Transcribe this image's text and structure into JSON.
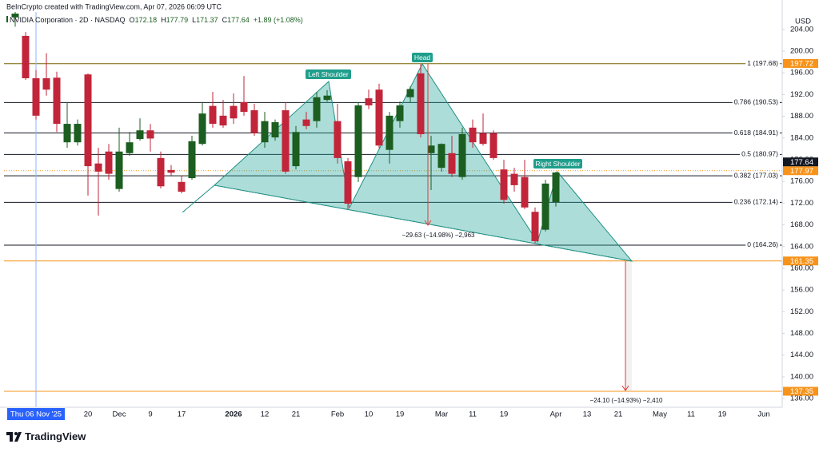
{
  "header": {
    "credit": "BeInCrypto created with TradingView.com, Apr 07, 2026 06:09 UTC"
  },
  "footer": {
    "logo": "TradingView"
  },
  "chart_data": {
    "type": "candlestick",
    "currency": "USD",
    "ohlc_prefixes": [
      "O",
      "H",
      "L",
      "C"
    ],
    "change_label": "+1.89 (+1.08%)",
    "crosshair": 2,
    "categories": [
      null,
      null,
      "Thu 06 Nov '25",
      null,
      null,
      null,
      null,
      "20",
      null,
      null,
      "Dec",
      null,
      null,
      "9",
      null,
      null,
      "17",
      null,
      null,
      null,
      null,
      "2026",
      null,
      null,
      "12",
      null,
      null,
      "21",
      null,
      null,
      null,
      "Feb",
      null,
      null,
      "10",
      null,
      null,
      "19",
      null,
      null,
      null,
      "Mar",
      null,
      null,
      "11",
      null,
      null,
      "19",
      null,
      null,
      null,
      null,
      "Apr",
      null,
      null,
      "13",
      null,
      null,
      "21",
      null,
      null,
      null,
      "May",
      null,
      null,
      "11",
      null,
      null,
      "19",
      null,
      null,
      null,
      "Jun"
    ],
    "series": [
      {
        "name": "NVIDIA Corporation · 2D · NASDAQ",
        "up_color": "#1b5e20",
        "down_color": "#c2253a",
        "open": [
          206.2,
          202.8,
          195.0,
          195.0,
          195.1,
          183.2,
          183.2,
          195.7,
          179.3,
          181.5,
          174.6,
          181.2,
          183.8,
          185.4,
          180.3,
          178.1,
          175.9,
          176.6,
          182.9,
          189.9,
          188.1,
          189.9,
          190.6,
          189.1,
          183.2,
          184.1,
          189.1,
          178.8,
          187.4,
          187.1,
          191.0,
          187.1,
          179.7,
          176.8,
          191.3,
          192.9,
          181.8,
          187.1,
          191.5,
          195.9,
          181.2,
          178.5,
          181.2,
          176.8,
          185.9,
          184.9,
          184.9,
          178.2,
          177.4,
          176.8,
          170.4,
          167.1,
          172.18,
          null,
          null,
          null,
          null,
          null,
          null,
          null,
          null,
          null,
          null,
          null,
          null,
          null,
          null,
          null,
          null,
          null,
          null,
          null,
          null
        ],
        "high": [
          207.2,
          203.5,
          196.5,
          199.6,
          196.2,
          190.6,
          187.4,
          195.9,
          182.2,
          182.9,
          185.9,
          185.1,
          187.6,
          186.6,
          181.5,
          179.0,
          177.1,
          184.4,
          190.6,
          192.5,
          191.0,
          192.2,
          195.4,
          190.3,
          188.8,
          187.4,
          190.6,
          186.2,
          188.8,
          192.5,
          192.8,
          190.3,
          180.3,
          190.6,
          192.9,
          194.0,
          188.8,
          190.7,
          193.5,
          197.6,
          184.4,
          183.0,
          184.4,
          185.9,
          187.4,
          188.5,
          185.4,
          180.0,
          178.5,
          180.0,
          171.2,
          176.3,
          177.79,
          null,
          null,
          null,
          null,
          null,
          null,
          null,
          null,
          null,
          null,
          null,
          null,
          null,
          null,
          null,
          null,
          null,
          null,
          null,
          null
        ],
        "low": [
          204.5,
          194.7,
          187.4,
          191.8,
          185.1,
          182.2,
          182.6,
          173.4,
          169.7,
          176.3,
          174.1,
          180.7,
          183.5,
          181.5,
          174.7,
          177.1,
          173.8,
          176.3,
          182.6,
          185.9,
          185.9,
          186.6,
          188.1,
          184.4,
          182.2,
          183.5,
          177.4,
          178.2,
          185.6,
          185.9,
          190.7,
          179.3,
          170.9,
          175.9,
          189.3,
          182.1,
          179.3,
          185.9,
          190.6,
          184.1,
          174.4,
          177.8,
          176.8,
          176.3,
          182.2,
          182.6,
          180.0,
          171.9,
          174.1,
          170.9,
          164.6,
          166.8,
          171.37,
          null,
          null,
          null,
          null,
          null,
          null,
          null,
          null,
          null,
          null,
          null,
          null,
          null,
          null,
          null,
          null,
          null,
          null,
          null,
          null
        ],
        "close": [
          206.9,
          195.0,
          188.1,
          192.9,
          186.6,
          186.6,
          186.6,
          178.8,
          177.8,
          177.4,
          181.5,
          183.2,
          185.4,
          183.9,
          175.1,
          177.6,
          174.1,
          183.4,
          188.5,
          186.6,
          186.3,
          187.6,
          188.8,
          184.9,
          187.1,
          186.9,
          177.8,
          185.1,
          186.2,
          191.5,
          191.8,
          180.3,
          171.9,
          190.0,
          190.0,
          182.6,
          188.1,
          190.0,
          193.0,
          184.7,
          182.6,
          182.9,
          177.4,
          184.7,
          183.2,
          182.9,
          180.3,
          172.6,
          175.3,
          171.2,
          165.0,
          175.6,
          177.64,
          null,
          null,
          null,
          null,
          null,
          null,
          null,
          null,
          null,
          null,
          null,
          null,
          null,
          null,
          null,
          null,
          null,
          null,
          null,
          null
        ]
      }
    ],
    "ylim": [
      134.4,
      207.2
    ],
    "yticks": [
      {
        "value": 136,
        "label": "136.00"
      },
      {
        "value": 140,
        "label": "140.00"
      },
      {
        "value": 144,
        "label": "144.00"
      },
      {
        "value": 148,
        "label": "148.00"
      },
      {
        "value": 152,
        "label": "152.00"
      },
      {
        "value": 156,
        "label": "156.00"
      },
      {
        "value": 160,
        "label": "160.00"
      },
      {
        "value": 164,
        "label": "164.00"
      },
      {
        "value": 168,
        "label": "168.00"
      },
      {
        "value": 172,
        "label": "172.00"
      },
      {
        "value": 176,
        "label": "176.00"
      },
      {
        "value": 180,
        "label": "180.00"
      },
      {
        "value": 184,
        "label": "184.00"
      },
      {
        "value": 188,
        "label": "188.00"
      },
      {
        "value": 192,
        "label": "192.00"
      },
      {
        "value": 196,
        "label": "196.00"
      },
      {
        "value": 200,
        "label": "200.00"
      },
      {
        "value": 204,
        "label": "204.00"
      }
    ],
    "grid": false,
    "fib_levels": [
      {
        "value": 197.68,
        "label": "1 (197.68)",
        "color": "#7a6200"
      },
      {
        "value": 190.53,
        "label": "0.786 (190.53)",
        "color": "#131722"
      },
      {
        "value": 184.91,
        "label": "0.618 (184.91)",
        "color": "#131722"
      },
      {
        "value": 180.97,
        "label": "0.5 (180.97)",
        "color": "#131722"
      },
      {
        "value": 177.03,
        "label": "0.382 (177.03)",
        "color": "#131722"
      },
      {
        "value": 172.14,
        "label": "0.236 (172.14)",
        "color": "#131722"
      },
      {
        "value": 164.26,
        "label": "0 (164.26)",
        "color": "#131722"
      }
    ],
    "price_tags": [
      {
        "value": 197.72,
        "color": "#f7931a"
      },
      {
        "value": 177.97,
        "color": "#f7931a",
        "line": "dotted"
      },
      {
        "value": 177.64,
        "color": "#131722"
      },
      {
        "value": 161.35,
        "color": "#f7931a",
        "line": "solid"
      },
      {
        "value": 137.35,
        "color": "#f7931a",
        "line": "solid"
      }
    ],
    "pattern_labels": [
      "Left Shoulder",
      "Head",
      "Right Shoulder"
    ],
    "measurements": [
      "−29.63 (−14.98%) −2,963",
      "−24.10 (−14.93%) −2,410"
    ]
  }
}
